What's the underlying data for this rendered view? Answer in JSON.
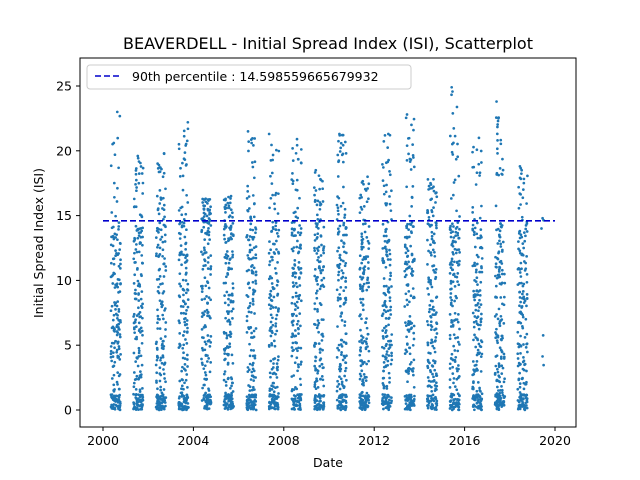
{
  "chart_data": {
    "type": "scatter",
    "title": "BEAVERDELL - Initial Spread Index (ISI), Scatterplot",
    "xlabel": "Date",
    "ylabel": "Initial Spread Index (ISI)",
    "xlim": [
      2000,
      2020
    ],
    "ylim": [
      -1.25,
      27
    ],
    "x_ticks": [
      "2000",
      "2004",
      "2008",
      "2012",
      "2016",
      "2020"
    ],
    "y_ticks": [
      "0",
      "5",
      "10",
      "15",
      "20",
      "25"
    ],
    "grid": false,
    "legend_position": "top-left",
    "percentile_line": {
      "label": "90th percentile : 14.598559665679932",
      "value": 14.598559665679932,
      "x_range": [
        2000,
        2020
      ],
      "color": "#0000cc",
      "style": "dashed"
    },
    "point_color": "#1f77b4",
    "point_count_per_season": 190,
    "seasons": [
      {
        "start": 2000.35,
        "end": 2000.78,
        "max": 23.0
      },
      {
        "start": 2001.35,
        "end": 2001.78,
        "max": 19.6
      },
      {
        "start": 2002.35,
        "end": 2002.78,
        "max": 19.8
      },
      {
        "start": 2003.35,
        "end": 2003.78,
        "max": 22.2
      },
      {
        "start": 2004.35,
        "end": 2004.78,
        "max": 16.3
      },
      {
        "start": 2005.35,
        "end": 2005.78,
        "max": 16.5
      },
      {
        "start": 2006.35,
        "end": 2006.78,
        "max": 21.5
      },
      {
        "start": 2007.35,
        "end": 2007.78,
        "max": 21.3
      },
      {
        "start": 2008.35,
        "end": 2008.78,
        "max": 20.9
      },
      {
        "start": 2009.35,
        "end": 2009.78,
        "max": 18.5
      },
      {
        "start": 2010.35,
        "end": 2010.78,
        "max": 21.3
      },
      {
        "start": 2011.35,
        "end": 2011.78,
        "max": 18.0
      },
      {
        "start": 2012.35,
        "end": 2012.78,
        "max": 21.3
      },
      {
        "start": 2013.35,
        "end": 2013.78,
        "max": 22.8
      },
      {
        "start": 2014.35,
        "end": 2014.78,
        "max": 17.8
      },
      {
        "start": 2015.35,
        "end": 2015.78,
        "max": 24.9
      },
      {
        "start": 2016.35,
        "end": 2016.78,
        "max": 21.0
      },
      {
        "start": 2017.35,
        "end": 2017.78,
        "max": 23.8
      },
      {
        "start": 2018.35,
        "end": 2018.78,
        "max": 18.8
      },
      {
        "start": 2019.35,
        "end": 2019.5,
        "max": 14.8,
        "points": 6
      }
    ]
  }
}
